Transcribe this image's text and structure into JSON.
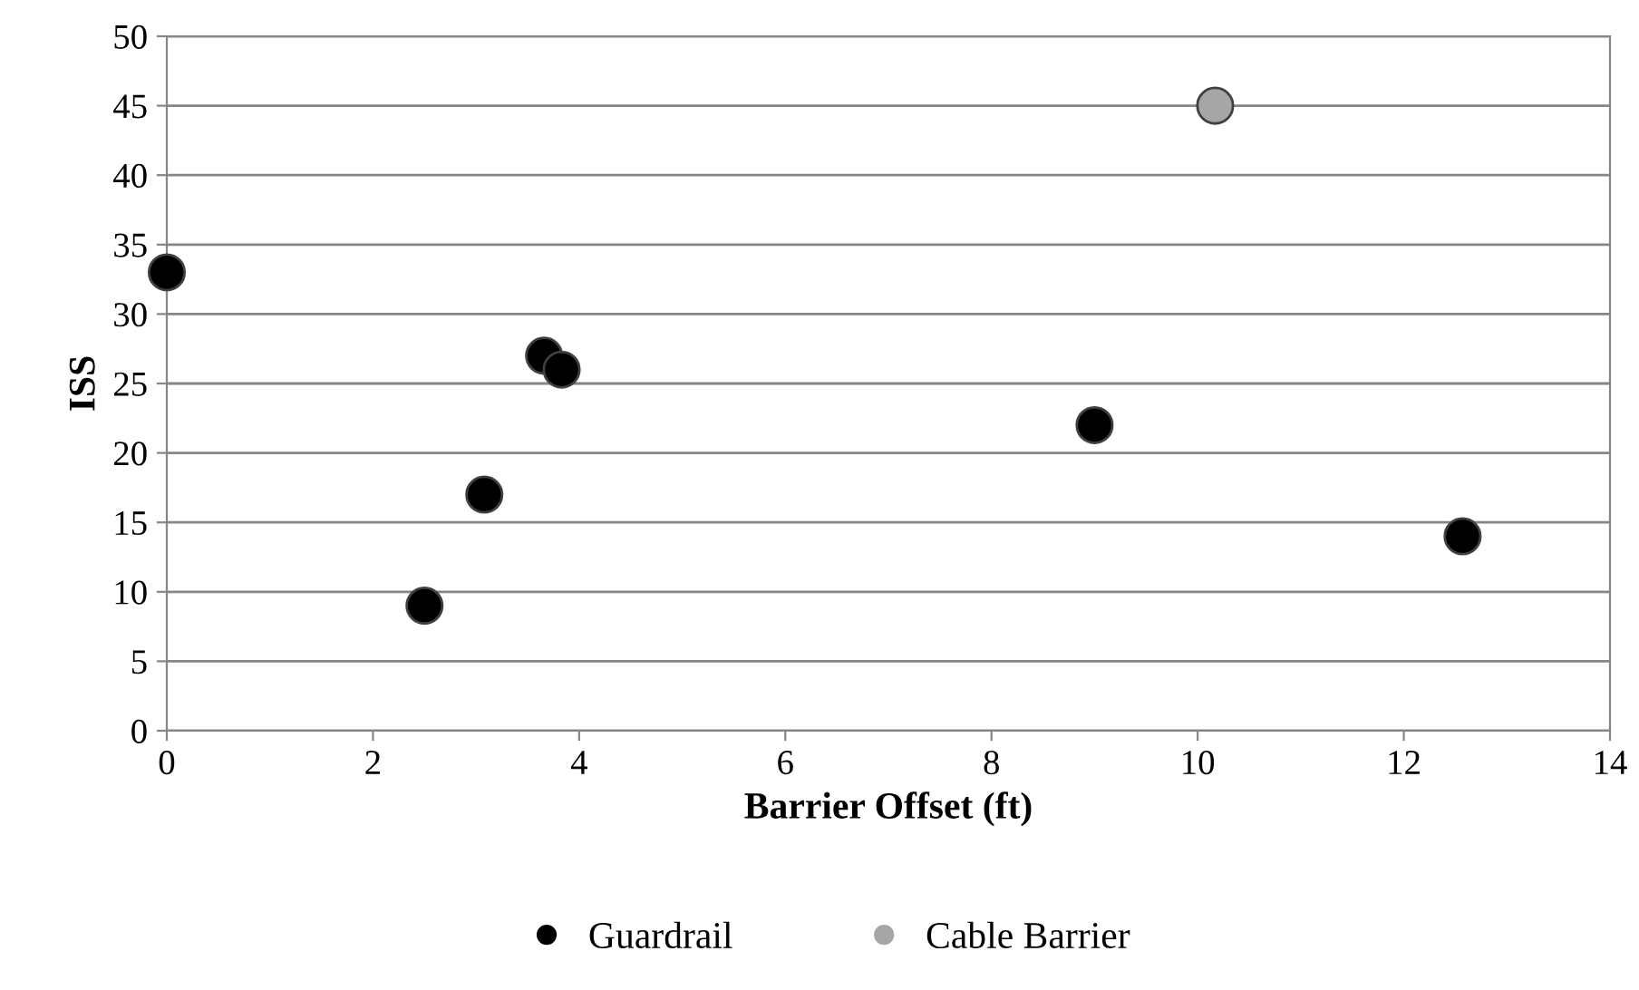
{
  "chart_data": {
    "type": "scatter",
    "xlabel": "Barrier Offset (ft)",
    "ylabel": "ISS",
    "series": [
      {
        "name": "Guardrail",
        "color": "#000000",
        "x": [
          0,
          2.5,
          3.08,
          3.66,
          3.83,
          9.0,
          12.57
        ],
        "values": [
          33,
          9,
          17,
          27,
          26,
          22,
          14
        ]
      },
      {
        "name": "Cable Barrier",
        "color": "#a6a6a6",
        "x": [
          10.17
        ],
        "values": [
          45
        ]
      }
    ],
    "xlim": [
      0,
      14
    ],
    "xticks": [
      0,
      2,
      4,
      6,
      8,
      10,
      12,
      14
    ],
    "ylim": [
      0,
      50
    ],
    "yticks": [
      0,
      5,
      10,
      15,
      20,
      25,
      30,
      35,
      40,
      45,
      50
    ],
    "grid": "y",
    "legend": "bottom",
    "marker": "circle"
  }
}
